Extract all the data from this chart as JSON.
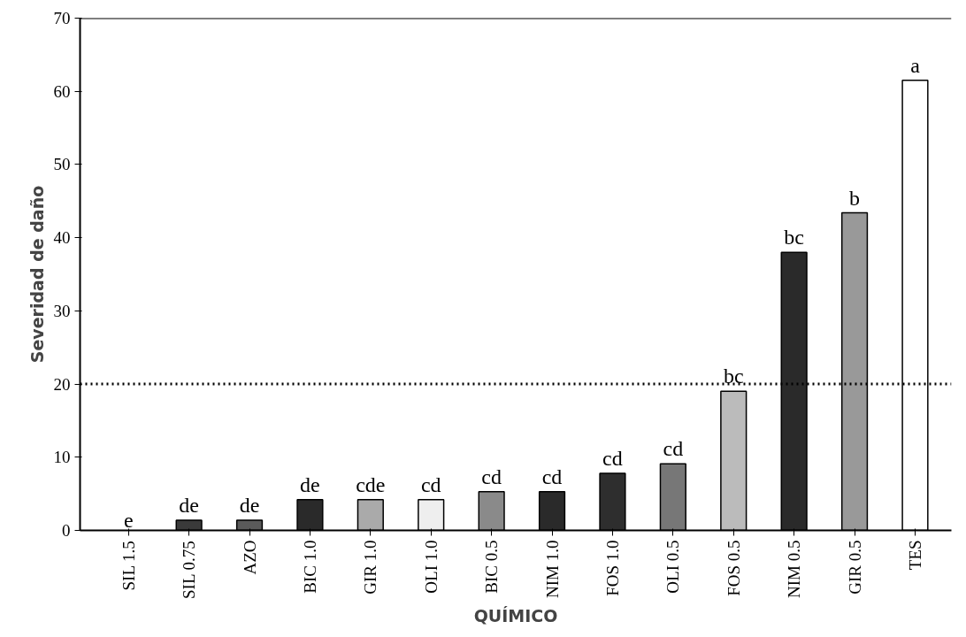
{
  "chart_data": {
    "type": "bar",
    "xlabel": "QUÍMICO",
    "ylabel": "Severidad de daño",
    "categories": [
      "SIL 1.5",
      "SIL 0.75",
      "AZO",
      "BIC 1.0",
      "GIR 1.0",
      "OLI 1.0",
      "BIC 0.5",
      "NIM 1.0",
      "FOS 1.0",
      "OLI 0.5",
      "FOS 0.5",
      "NIM 0.5",
      "GIR 0.5",
      "TES"
    ],
    "values": [
      0,
      1.4,
      1.4,
      4.2,
      4.2,
      4.2,
      5.3,
      5.3,
      7.8,
      9.1,
      19,
      38,
      43.4,
      61.5
    ],
    "colors": [
      null,
      "#3a3a3a",
      "#5a5a5a",
      "#2a2a2a",
      "#aaaaaa",
      "#eeeeee",
      "#8a8a8a",
      "#2a2a2a",
      "#2e2e2e",
      "#777777",
      "#bbbbbb",
      "#2a2a2a",
      "#999999",
      "#ffffff"
    ],
    "ylim": [
      0,
      70
    ],
    "yticks": [
      0,
      10,
      20,
      30,
      40,
      50,
      60,
      70
    ],
    "ref_lines": [
      {
        "axis": "y",
        "value": 20,
        "line_style": "dotted",
        "color": "#000000"
      }
    ],
    "annotations": [
      {
        "text": "e",
        "x": "SIL 1.5",
        "y": 0
      },
      {
        "text": "de",
        "x": "SIL 0.75",
        "y": 1.4
      },
      {
        "text": "de",
        "x": "AZO",
        "y": 1.4
      },
      {
        "text": "de",
        "x": "BIC 1.0",
        "y": 4.2
      },
      {
        "text": "cde",
        "x": "GIR 1.0",
        "y": 4.2
      },
      {
        "text": "cd",
        "x": "OLI 1.0",
        "y": 4.2
      },
      {
        "text": "cd",
        "x": "BIC 0.5",
        "y": 5.3
      },
      {
        "text": "cd",
        "x": "NIM 1.0",
        "y": 5.3
      },
      {
        "text": "cd",
        "x": "FOS 1.0",
        "y": 7.8
      },
      {
        "text": "cd",
        "x": "OLI 0.5",
        "y": 9.1
      },
      {
        "text": "bc",
        "x": "FOS 0.5",
        "y": 19
      },
      {
        "text": "bc",
        "x": "NIM 0.5",
        "y": 38
      },
      {
        "text": "b",
        "x": "GIR 0.5",
        "y": 43.4
      },
      {
        "text": "a",
        "x": "TES",
        "y": 61.5
      }
    ],
    "grid": false
  }
}
